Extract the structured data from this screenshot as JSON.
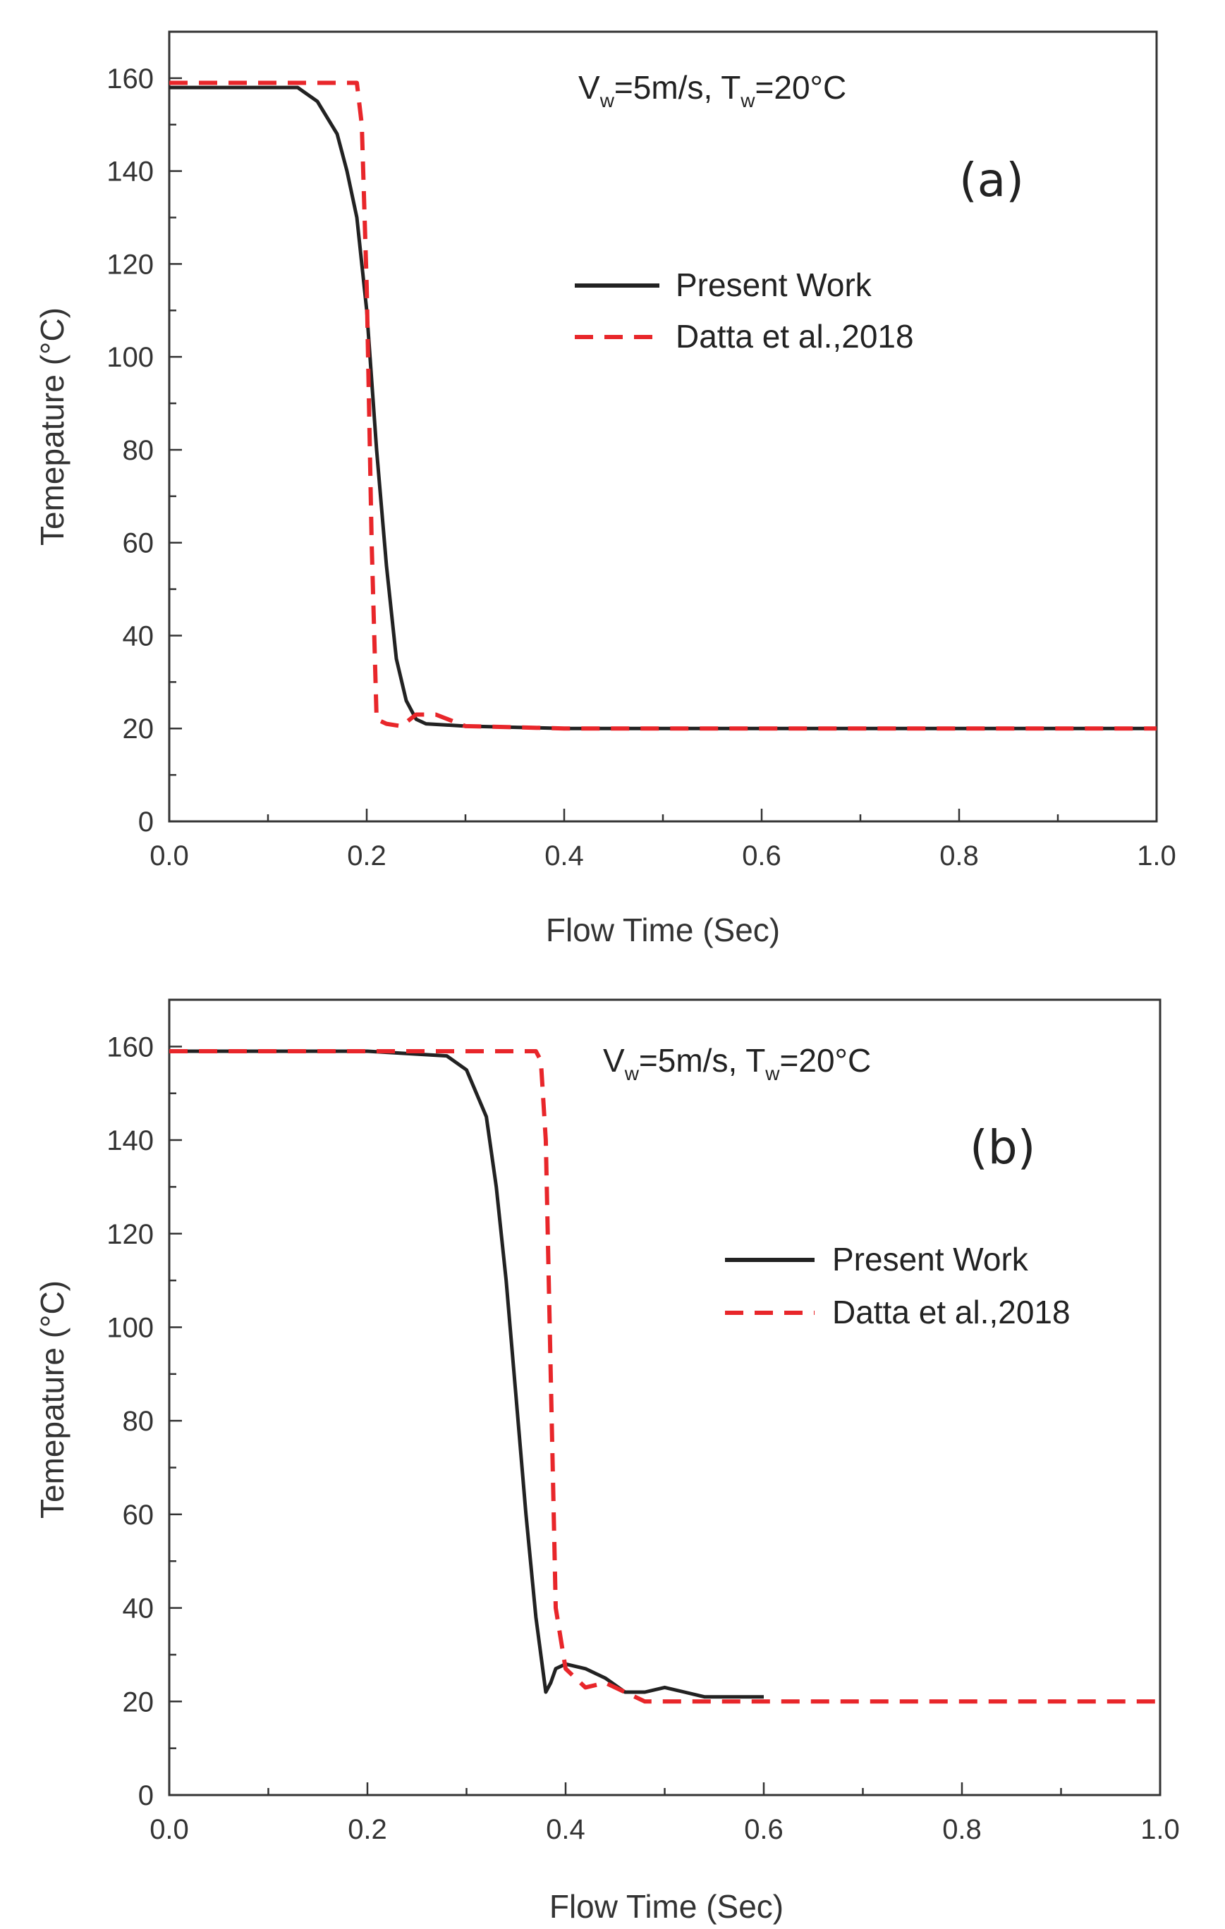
{
  "chart_data": [
    {
      "type": "line",
      "panel_label": "(a)",
      "annotation": {
        "v": "V",
        "v_sub": "w",
        "v_rest": "=5m/s, T",
        "t_sub": "w",
        "t_rest": "=20°C"
      },
      "xlabel": "Flow Time (Sec)",
      "ylabel": "Temepature (°C)",
      "xlim": [
        0.0,
        1.0
      ],
      "ylim": [
        0,
        170
      ],
      "xticks": [
        "0.0",
        "0.2",
        "0.4",
        "0.6",
        "0.8",
        "1.0"
      ],
      "yticks": [
        "0",
        "20",
        "40",
        "60",
        "80",
        "100",
        "120",
        "140",
        "160"
      ],
      "legend_position": "upper-right",
      "series": [
        {
          "name": "Present Work",
          "color": "#222222",
          "style": "solid",
          "x": [
            0.0,
            0.05,
            0.1,
            0.13,
            0.15,
            0.17,
            0.18,
            0.19,
            0.2,
            0.21,
            0.22,
            0.23,
            0.24,
            0.25,
            0.26,
            0.3,
            0.4,
            0.6,
            0.8,
            1.0
          ],
          "y": [
            158,
            158,
            158,
            158,
            155,
            148,
            140,
            130,
            110,
            80,
            55,
            35,
            26,
            22,
            21,
            20.5,
            20,
            20,
            20,
            20
          ]
        },
        {
          "name": "Datta et al.,2018",
          "color": "#e8262a",
          "style": "dashed",
          "x": [
            0.0,
            0.1,
            0.19,
            0.195,
            0.2,
            0.205,
            0.21,
            0.22,
            0.235,
            0.25,
            0.27,
            0.3,
            0.4,
            0.6,
            0.8,
            1.0
          ],
          "y": [
            159,
            159,
            159,
            150,
            115,
            60,
            22,
            21,
            20.5,
            23,
            23,
            20.5,
            20,
            20,
            20,
            20
          ]
        }
      ]
    },
    {
      "type": "line",
      "panel_label": "(b)",
      "annotation": {
        "v": "V",
        "v_sub": "w",
        "v_rest": "=5m/s, T",
        "t_sub": "w",
        "t_rest": "=20°C"
      },
      "xlabel": "Flow Time (Sec)",
      "ylabel": "Temepature (°C)",
      "xlim": [
        0.0,
        1.0
      ],
      "ylim": [
        0,
        170
      ],
      "xticks": [
        "0.0",
        "0.2",
        "0.4",
        "0.6",
        "0.8",
        "1.0"
      ],
      "yticks": [
        "0",
        "20",
        "40",
        "60",
        "80",
        "100",
        "120",
        "140",
        "160"
      ],
      "legend_position": "upper-right",
      "series": [
        {
          "name": "Present Work",
          "color": "#222222",
          "style": "solid",
          "x": [
            0.0,
            0.2,
            0.28,
            0.3,
            0.32,
            0.33,
            0.34,
            0.35,
            0.36,
            0.37,
            0.38,
            0.385,
            0.39,
            0.4,
            0.42,
            0.44,
            0.46,
            0.48,
            0.5,
            0.52,
            0.54,
            0.56,
            0.58,
            0.6
          ],
          "y": [
            159,
            159,
            158,
            155,
            145,
            130,
            110,
            85,
            60,
            38,
            22,
            24,
            27,
            28,
            27,
            25,
            22,
            22,
            23,
            22,
            21,
            21,
            21,
            21
          ]
        },
        {
          "name": "Datta et al.,2018",
          "color": "#e8262a",
          "style": "dashed",
          "x": [
            0.0,
            0.2,
            0.37,
            0.375,
            0.38,
            0.385,
            0.39,
            0.4,
            0.42,
            0.44,
            0.46,
            0.48,
            0.5,
            0.52,
            0.55,
            0.6,
            0.8,
            1.0
          ],
          "y": [
            159,
            159,
            159,
            157,
            140,
            90,
            40,
            27,
            23,
            24,
            22,
            20,
            20,
            20,
            20,
            20,
            20,
            20
          ]
        }
      ]
    }
  ]
}
